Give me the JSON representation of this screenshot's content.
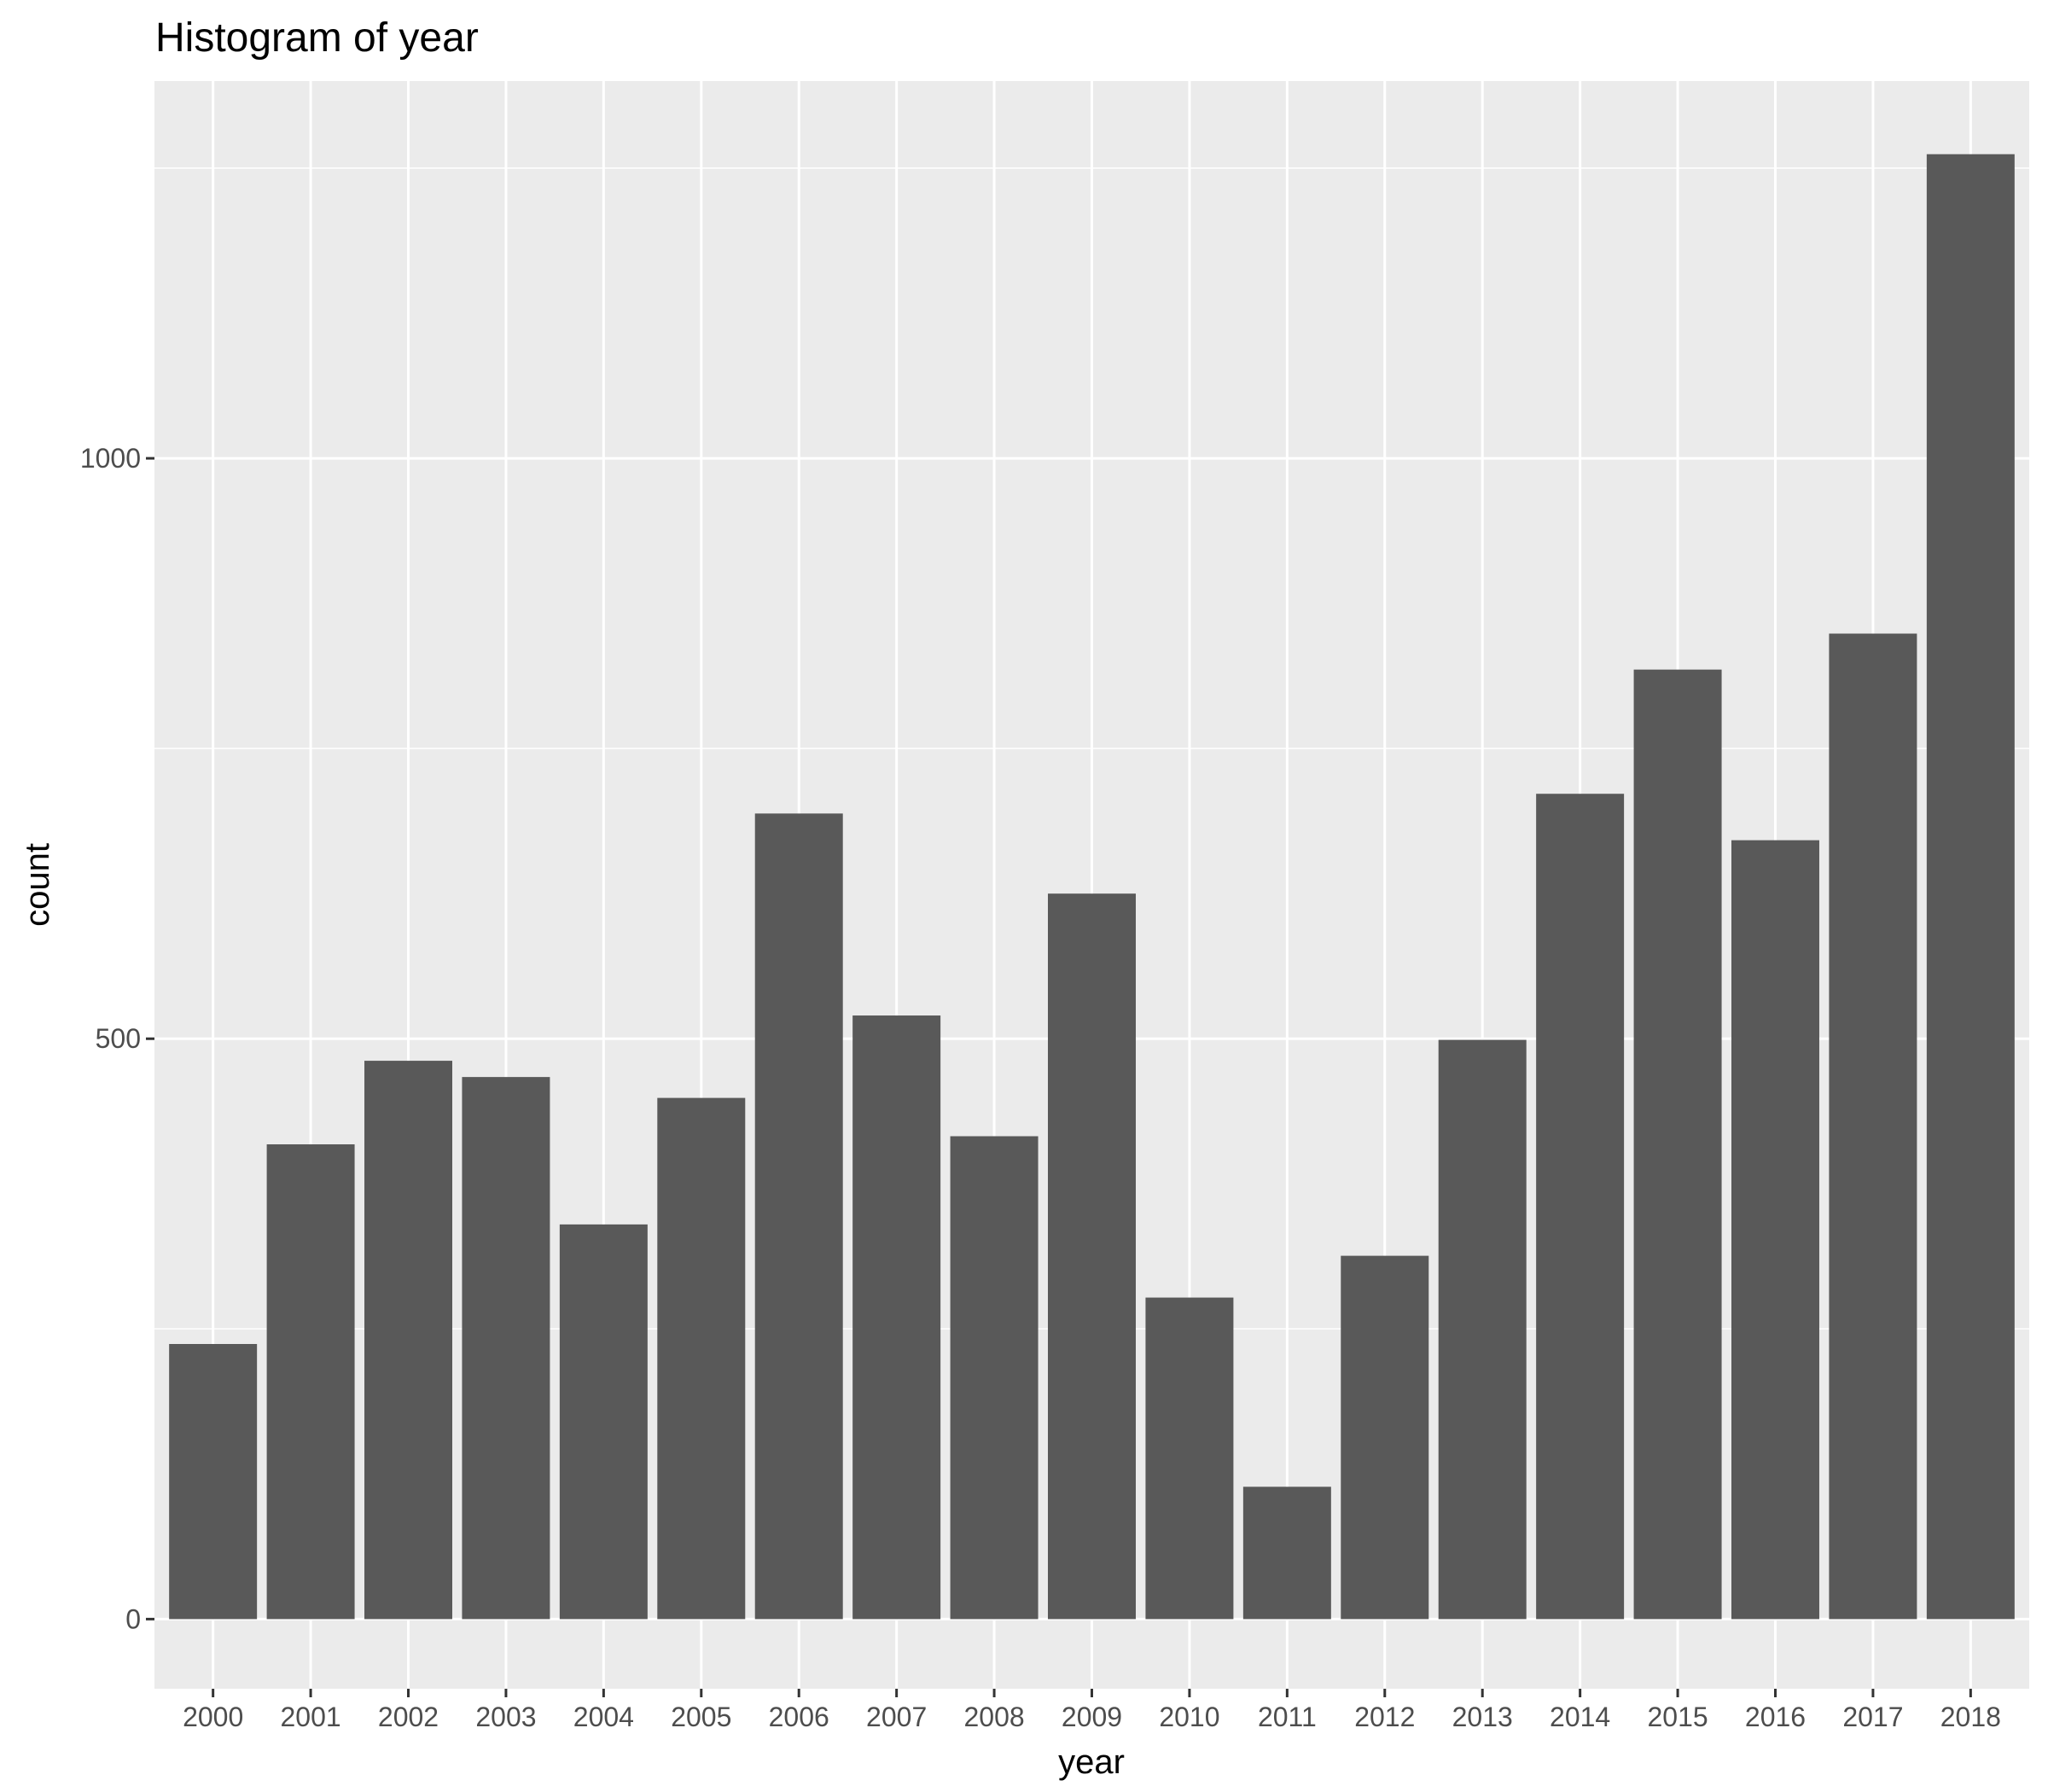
{
  "chart_data": {
    "type": "bar",
    "title": "Histogram of year",
    "xlabel": "year",
    "ylabel": "count",
    "categories": [
      "2000",
      "2001",
      "2002",
      "2003",
      "2004",
      "2005",
      "2006",
      "2007",
      "2008",
      "2009",
      "2010",
      "2011",
      "2012",
      "2013",
      "2014",
      "2015",
      "2016",
      "2017",
      "2018"
    ],
    "values": [
      237,
      409,
      481,
      467,
      340,
      449,
      694,
      520,
      416,
      625,
      277,
      114,
      313,
      499,
      711,
      818,
      671,
      849,
      1262
    ],
    "ylim": [
      -60,
      1325
    ],
    "yticks": [
      0,
      500,
      1000
    ],
    "yticks_minor": [
      250,
      750,
      1250
    ],
    "ytick_labels": [
      "0",
      "500",
      "1000"
    ],
    "grid": true,
    "legend": "none",
    "colors": {
      "panel_bg": "#ebebeb",
      "grid": "#ffffff",
      "bar_fill": "#595959",
      "tick_text": "#4d4d4d",
      "tick_mark": "#333333",
      "text": "#000000"
    }
  }
}
